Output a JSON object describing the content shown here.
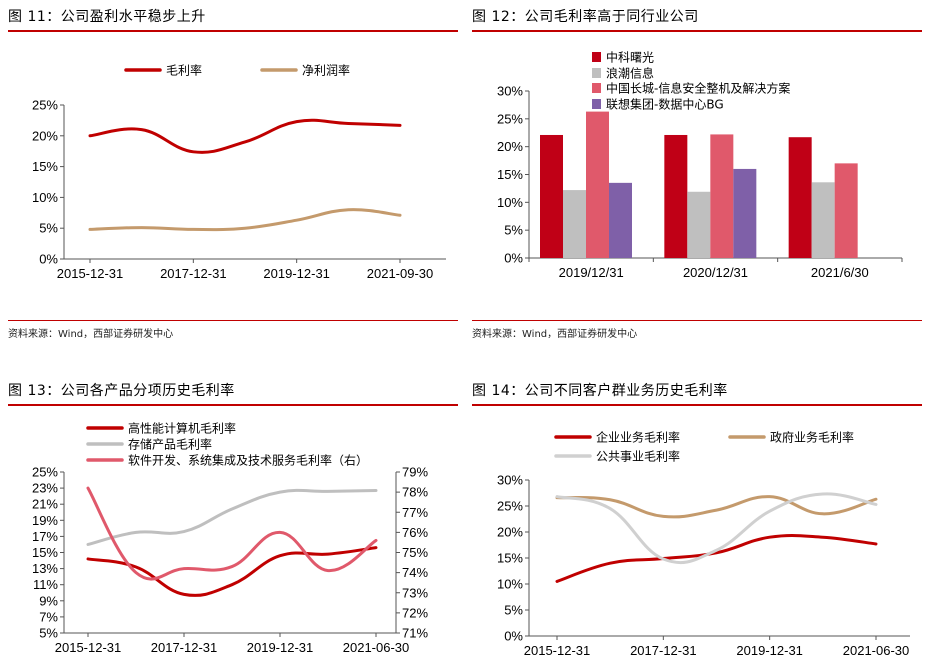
{
  "colors": {
    "red": "#c00000",
    "tan": "#c49a6c",
    "gray": "#bfbfbf",
    "pink": "#e0596b",
    "purple": "#7f60a8",
    "accent": "#c00000"
  },
  "chart_data": [
    {
      "id": "fig11",
      "type": "line",
      "title": "图 11：公司盈利水平稳步上升",
      "source": "资料来源：Wind，西部证券研发中心",
      "x": [
        "2015-12-31",
        "2016-12-31",
        "2017-12-31",
        "2018-12-31",
        "2019-12-31",
        "2020-12-31",
        "2021-09-30"
      ],
      "xticks": [
        "2015-12-31",
        "2017-12-31",
        "2019-12-31",
        "2021-09-30"
      ],
      "ylim": [
        0,
        25
      ],
      "yticks": [
        "0%",
        "5%",
        "10%",
        "15%",
        "20%",
        "25%"
      ],
      "grid": false,
      "legend": "top",
      "series": [
        {
          "name": "毛利率",
          "color": "#c00000",
          "values": [
            20.0,
            21.0,
            17.4,
            19.0,
            22.3,
            22.0,
            21.7
          ]
        },
        {
          "name": "净利润率",
          "color": "#c49a6c",
          "values": [
            4.8,
            5.1,
            4.8,
            5.0,
            6.3,
            8.0,
            7.1
          ]
        }
      ]
    },
    {
      "id": "fig12",
      "type": "bar",
      "title": "图 12：公司毛利率高于同行业公司",
      "source": "资料来源：Wind，西部证券研发中心",
      "categories": [
        "2019/12/31",
        "2020/12/31",
        "2021/6/30"
      ],
      "ylim": [
        0,
        30
      ],
      "yticks": [
        "0%",
        "5%",
        "10%",
        "15%",
        "20%",
        "25%",
        "30%"
      ],
      "grid": false,
      "legend": "top-left",
      "series": [
        {
          "name": "中科曙光",
          "color": "#c00016",
          "values": [
            22.1,
            22.1,
            21.7
          ]
        },
        {
          "name": "浪潮信息",
          "color": "#bfbfbf",
          "values": [
            12.2,
            11.9,
            13.6
          ]
        },
        {
          "name": "中国长城-信息安全整机及解决方案",
          "color": "#e0596b",
          "values": [
            26.3,
            22.2,
            17.0
          ]
        },
        {
          "name": "联想集团-数据中心BG",
          "color": "#7f60a8",
          "values": [
            13.5,
            16.0,
            null
          ]
        }
      ]
    },
    {
      "id": "fig13",
      "type": "line",
      "title": "图 13：公司各产品分项历史毛利率",
      "x": [
        "2015-12-31",
        "2016-12-31",
        "2017-12-31",
        "2018-12-31",
        "2019-12-31",
        "2020-12-31",
        "2021-06-30"
      ],
      "xticks": [
        "2015-12-31",
        "2017-12-31",
        "2019-12-31",
        "2021-06-30"
      ],
      "ylim": [
        5,
        25
      ],
      "yticks": [
        "5%",
        "7%",
        "9%",
        "11%",
        "13%",
        "15%",
        "17%",
        "19%",
        "21%",
        "23%",
        "25%"
      ],
      "y2lim": [
        71,
        79
      ],
      "y2ticks": [
        "71%",
        "72%",
        "73%",
        "74%",
        "75%",
        "76%",
        "77%",
        "78%",
        "79%"
      ],
      "grid": false,
      "legend": "top-left",
      "series": [
        {
          "name": "高性能计算机毛利率",
          "color": "#c00000",
          "axis": "left",
          "values": [
            14.2,
            13.2,
            9.8,
            11.0,
            14.6,
            14.8,
            15.6
          ]
        },
        {
          "name": "存储产品毛利率",
          "color": "#bfbfbf",
          "axis": "left",
          "values": [
            16.0,
            17.5,
            17.6,
            20.4,
            22.5,
            22.6,
            22.7
          ]
        },
        {
          "name": "软件开发、系统集成及技术服务毛利率（右）",
          "color": "#e0596b",
          "axis": "right",
          "values": [
            78.2,
            74.0,
            74.2,
            74.3,
            76.0,
            74.1,
            75.6
          ]
        }
      ]
    },
    {
      "id": "fig14",
      "type": "line",
      "title": "图 14：公司不同客户群业务历史毛利率",
      "x": [
        "2015-12-31",
        "2016-12-31",
        "2017-12-31",
        "2018-12-31",
        "2019-12-31",
        "2020-12-31",
        "2021-06-30"
      ],
      "xticks": [
        "2015-12-31",
        "2017-12-31",
        "2019-12-31",
        "2021-06-30"
      ],
      "ylim": [
        0,
        30
      ],
      "yticks": [
        "0%",
        "5%",
        "10%",
        "15%",
        "20%",
        "25%",
        "30%"
      ],
      "grid": false,
      "legend": "top",
      "series": [
        {
          "name": "企业业务毛利率",
          "color": "#c00000",
          "values": [
            10.5,
            14.0,
            14.9,
            16.0,
            19.0,
            19.0,
            17.7
          ]
        },
        {
          "name": "政府业务毛利率",
          "color": "#c49a6c",
          "values": [
            26.6,
            26.2,
            23.0,
            24.2,
            26.8,
            23.5,
            26.3
          ]
        },
        {
          "name": "公共事业毛利率",
          "color": "#d0d0d0",
          "values": [
            26.8,
            24.5,
            14.8,
            16.5,
            24.0,
            27.3,
            25.3
          ]
        }
      ]
    }
  ]
}
